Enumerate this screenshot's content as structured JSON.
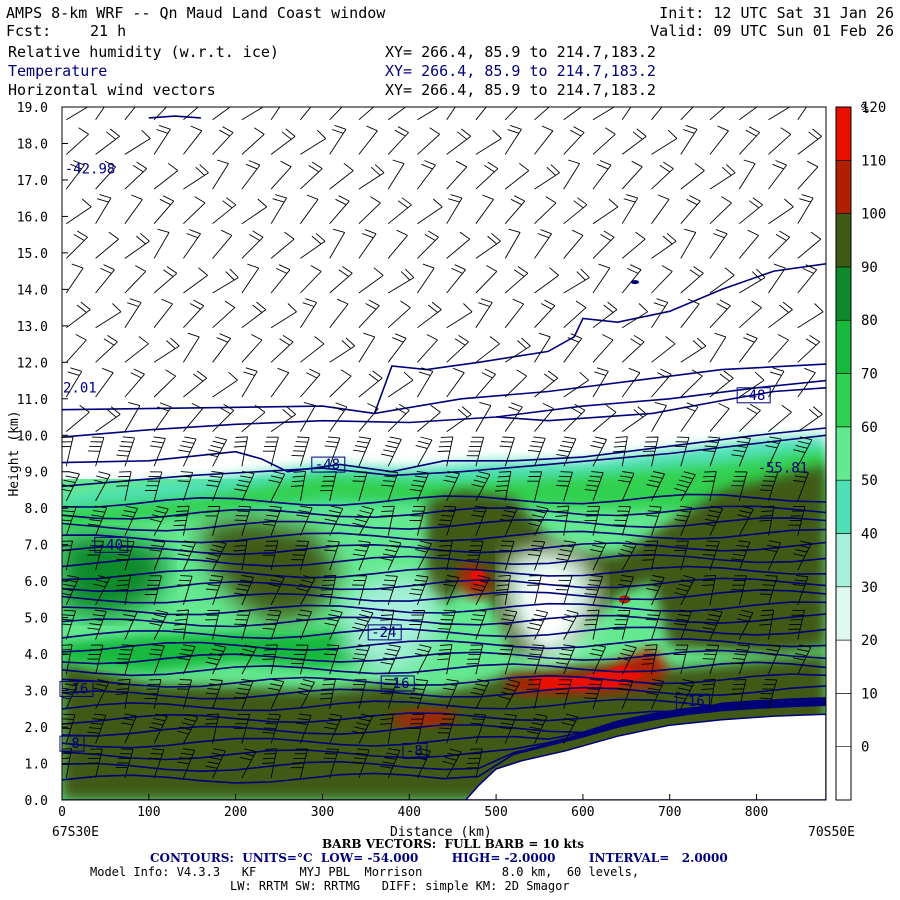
{
  "header": {
    "title": "AMPS 8-km WRF -- Qn Maud Land Coast window",
    "fcst_label": "Fcst:",
    "fcst_value": "21 h",
    "init": "Init: 12 UTC Sat 31 Jan 26",
    "valid": "Valid: 09 UTC Sun 01 Feb 26",
    "fields": [
      {
        "name": "Relative humidity (w.r.t. ice)",
        "xy": "XY= 266.4, 85.9 to 214.7,183.2"
      },
      {
        "name": "Temperature",
        "xy": "XY= 266.4, 85.9 to 214.7,183.2"
      },
      {
        "name": "Horizontal wind vectors",
        "xy": "XY= 266.4, 85.9 to 214.7,183.2"
      }
    ]
  },
  "chart_data": {
    "type": "heatmap",
    "xlabel": "Distance (km)",
    "ylabel": "Height (km)",
    "xlim": [
      0,
      880
    ],
    "ylim": [
      0,
      19
    ],
    "x_ticks": [
      0,
      100,
      200,
      300,
      400,
      500,
      600,
      700,
      800
    ],
    "y_ticks": [
      "0.0",
      "1.0",
      "2.0",
      "3.0",
      "4.0",
      "5.0",
      "6.0",
      "7.0",
      "8.0",
      "9.0",
      "10.0",
      "11.0",
      "12.0",
      "13.0",
      "14.0",
      "15.0",
      "16.0",
      "17.0",
      "18.0",
      "19.0"
    ],
    "left_endpoint": "67S30E",
    "right_endpoint": "70S50E",
    "colorbar": {
      "unit": "%",
      "labels": [
        "0",
        "10",
        "20",
        "30",
        "40",
        "50",
        "60",
        "70",
        "80",
        "90",
        "100",
        "110",
        "120"
      ],
      "colors": [
        "#ffffff",
        "#ffffff",
        "#ffffff",
        "#dff8f0",
        "#a8f0dc",
        "#50e0b8",
        "#64e890",
        "#30d050",
        "#18b83c",
        "#0e8a2c",
        "#3f5a14",
        "#b02000",
        "#e81000"
      ]
    },
    "terrain_km": [
      [
        0,
        0
      ],
      [
        465,
        0
      ],
      [
        480,
        0.4
      ],
      [
        500,
        0.85
      ],
      [
        530,
        1.08
      ],
      [
        580,
        1.35
      ],
      [
        640,
        1.75
      ],
      [
        700,
        2.05
      ],
      [
        760,
        2.2
      ],
      [
        820,
        2.3
      ],
      [
        880,
        2.35
      ]
    ],
    "temperature_labels": [
      "-42.98",
      "2.01",
      "-48",
      "-48",
      "-55.81",
      "-40",
      "-24",
      "-16",
      "-16",
      "-16",
      "-8",
      "-8"
    ],
    "rh_high_regions": [
      "~100-110% over most of 0-9 km",
      ">110% near 470 km, 6 km",
      ">110% 520-700 km, 2.8-3.5 km",
      ">110% 380-450 km, 2.0-2.4 km"
    ]
  },
  "footer": {
    "barb_note": "BARB VECTORS:  FULL BARB = 10 kts",
    "contours": "CONTOURS:  UNITS=°C  LOW= -54.000        HIGH= -2.0000        INTERVAL=   2.0000",
    "model_info": "Model Info: V4.3.3   KF      MYJ PBL  Morrison           8.0 km,  60 levels,",
    "model_info2": "LW: RRTM SW: RRTMG   DIFF: simple KM: 2D Smagor"
  }
}
